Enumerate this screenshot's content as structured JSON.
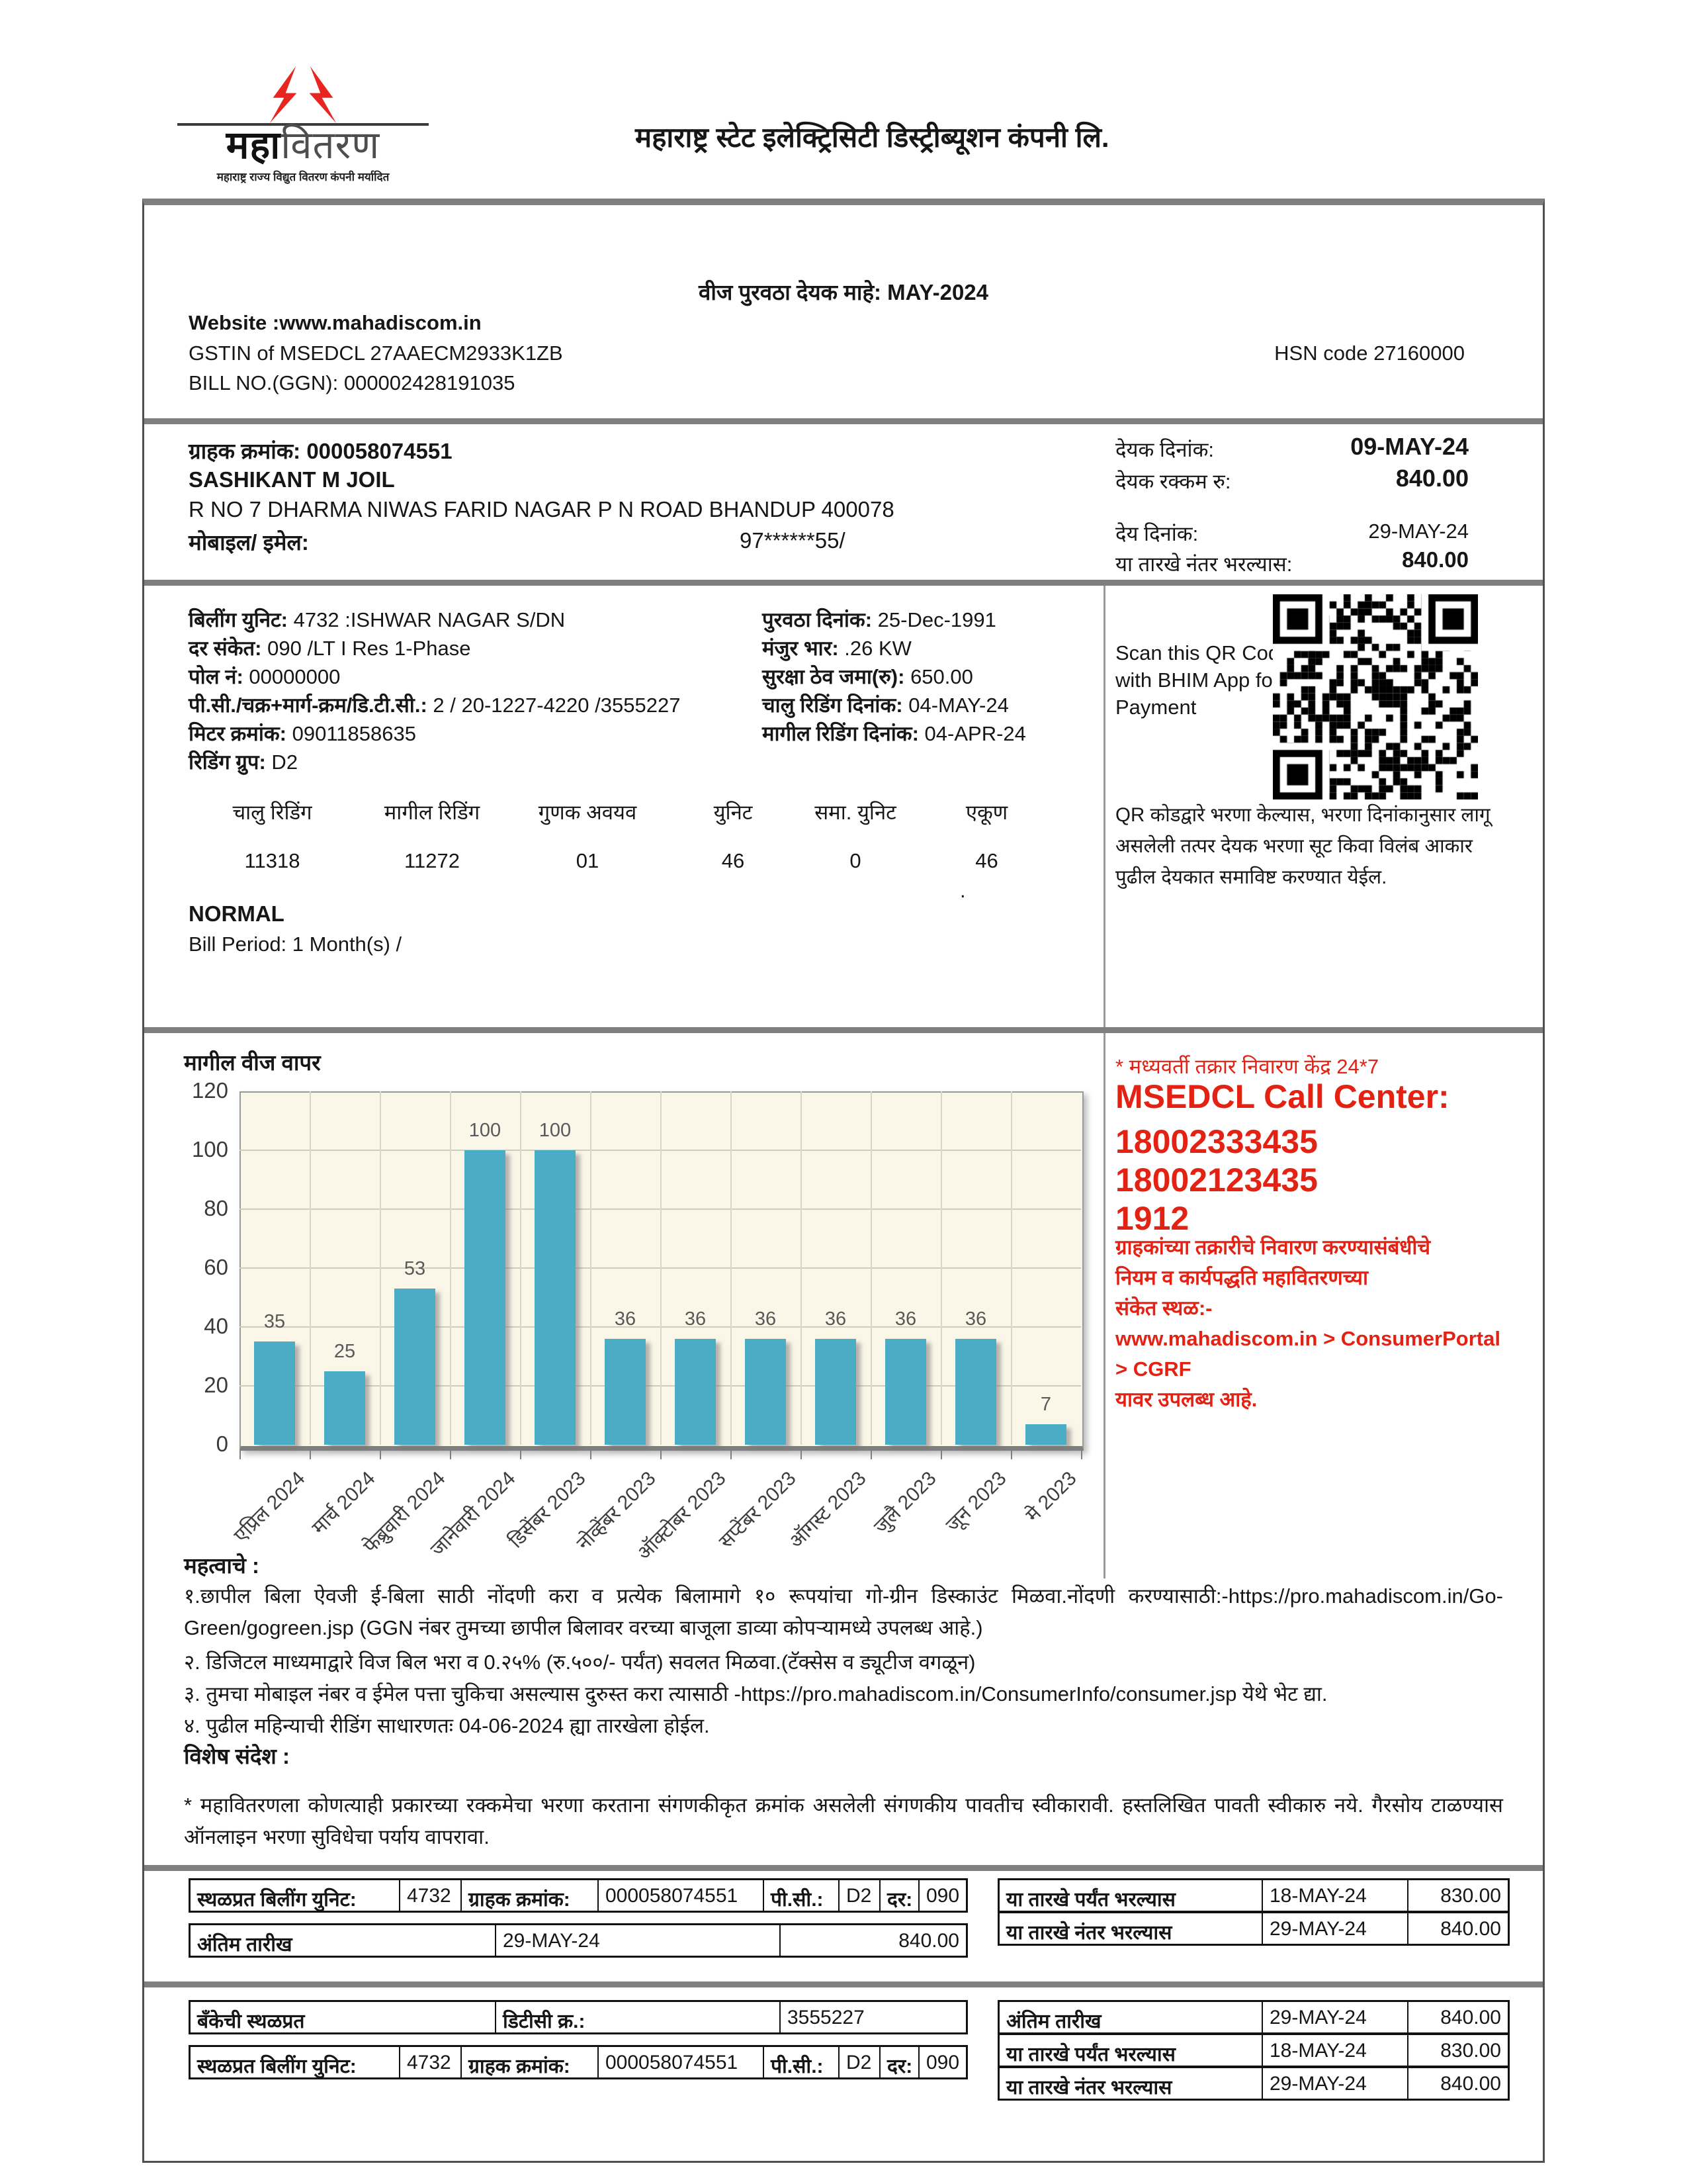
{
  "header": {
    "logo": {
      "word_bold": "महा",
      "word_light": "वितरण",
      "tagline": "महाराष्ट्र राज्य विद्युत वितरण कंपनी मर्यादित"
    },
    "company_name": "महाराष्ट्र स्टेट इलेक्ट्रिसिटी डिस्ट्रीब्यूशन कंपनी लि."
  },
  "bill_info": {
    "month_title": "वीज पुरवठा देयक माहे: MAY-2024",
    "website": "Website :www.mahadiscom.in",
    "gstin": "GSTIN of MSEDCL 27AAECM2933K1ZB",
    "bill_no": "BILL NO.(GGN): 000002428191035",
    "hsn": "HSN code 27160000"
  },
  "customer": {
    "consumer_no_label": "ग्राहक क्रमांक:",
    "consumer_no": "000058074551",
    "name": "SASHIKANT M JOIL",
    "address": "R NO 7 DHARMA NIWAS FARID NAGAR P N ROAD BHANDUP 400078",
    "mobile_label": "मोबाइल/ इमेल:",
    "mobile_value": "97******55/"
  },
  "amounts": {
    "rows": [
      {
        "label": "देयक दिनांक:",
        "value": "09-MAY-24"
      },
      {
        "label": "देयक रक्कम रु:",
        "value": "840.00"
      },
      {
        "label": "देय दिनांक:",
        "value": "29-MAY-24"
      },
      {
        "label": "या तारखे नंतर भरल्यास:",
        "value": "840.00"
      }
    ]
  },
  "billing_details": {
    "left": [
      {
        "label": "बिलींग युनिट:",
        "value": " 4732 :ISHWAR NAGAR S/DN"
      },
      {
        "label": "दर संकेत:",
        "value": " 090 /LT I Res 1-Phase"
      },
      {
        "label": "पोल नं:",
        "value": " 00000000"
      },
      {
        "label": "पी.सी./चक्र+मार्ग-क्रम/डि.टी.सी.:",
        "value": " 2 / 20-1227-4220 /3555227"
      },
      {
        "label": "मिटर क्रमांक:",
        "value": " 09011858635"
      },
      {
        "label": "रिडिंग ग्रुप:",
        "value": " D2"
      }
    ],
    "middle": [
      {
        "label": "पुरवठा दिनांक:",
        "value": " 25-Dec-1991"
      },
      {
        "label": "मंजुर भार:",
        "value": " .26 KW"
      },
      {
        "label": "सुरक्षा ठेव जमा(रु):",
        "value": " 650.00"
      },
      {
        "label": "चालु रिडिंग दिनांक:",
        "value": " 04-MAY-24"
      },
      {
        "label": "मागील रिडिंग दिनांक:",
        "value": " 04-APR-24"
      }
    ]
  },
  "qr": {
    "scan_text": "Scan this QR Code with BHIM App for UPI Payment",
    "note": "QR कोडद्वारे भरणा केल्यास, भरणा दिनांकानुसार लागू असलेली तत्पर देयक भरणा सूट किवा विलंब आकार पुढील देयकात समाविष्ट करण्यात येईल."
  },
  "readings": {
    "headers": [
      "चालु रिडिंग",
      "मागील रिडिंग",
      "गुणक अवयव",
      "युनिट",
      "समा. युनिट",
      "एकूण"
    ],
    "values": [
      "11318",
      "11272",
      "01",
      "46",
      "0",
      "46"
    ],
    "stray_dot": ".",
    "status": "NORMAL",
    "bill_period": "Bill Period: 1 Month(s) /"
  },
  "chart_data": {
    "type": "bar",
    "title": "मागील वीज वापर",
    "categories": [
      "एप्रिल 2024",
      "मार्च 2024",
      "फेब्रुवारी 2024",
      "जानेवारी 2024",
      "डिसेंबर 2023",
      "नोव्हेंबर 2023",
      "ऑक्टोबर 2023",
      "सप्टेंबर 2023",
      "ऑगस्ट 2023",
      "जुलै 2023",
      "जून 2023",
      "मे 2023"
    ],
    "values": [
      35,
      25,
      53,
      100,
      100,
      36,
      36,
      36,
      36,
      36,
      36,
      7
    ],
    "xlabel": "",
    "ylabel": "",
    "ylim": [
      0,
      120
    ],
    "ytick_step": 20,
    "grid": true,
    "legend": false,
    "bar_color": "#4bacc6",
    "plot_bg": "#fbf7e8"
  },
  "call_center": {
    "note": "* मध्यवर्ती तक्रार निवारण केंद्र 24*7",
    "title": "MSEDCL Call Center:",
    "numbers": [
      "18002333435",
      "18002123435",
      "1912"
    ],
    "lines": [
      "ग्राहकांच्या तक्रारीचे निवारण करण्यासंबंधीचे",
      "नियम व कार्यपद्धति महावितरणच्या",
      "संकेत स्थळ:-",
      "www.mahadiscom.in > ConsumerPortal",
      "> CGRF",
      "यावर उपलब्ध आहे."
    ]
  },
  "notes": {
    "title": "महत्वाचे :",
    "items": [
      "१.छापील बिला ऐवजी ई-बिला साठी नोंदणी करा व प्रत्येक बिलामागे १० रूपयांचा गो-ग्रीन डिस्काउंट मिळवा.नोंदणी करण्यासाठी:-https://pro.mahadiscom.in/Go-Green/gogreen.jsp (GGN नंबर तुमच्या छापील बिलावर वरच्या बाजूला डाव्या कोपऱ्यामध्ये उपलब्ध आहे.)",
      "२. डिजिटल माध्यमाद्वारे विज बिल भरा व 0.२५% (रु.५००/- पर्यंत) सवलत मिळवा.(टॅक्सेस व ड्यूटीज वगळून)",
      "३. तुमचा मोबाइल नंबर व ईमेल पत्ता चुकिचा असल्यास दुरुस्त करा त्यासाठी -https://pro.mahadiscom.in/ConsumerInfo/consumer.jsp येथे भेट द्या.",
      "४. पुढील महिन्याची रीडिंग साधारणतः 04-06-2024 ह्या तारखेला होईल."
    ],
    "special_title": "विशेष संदेश :",
    "special_message": "* महावितरणला कोणत्याही प्रकारच्या रक्कमेचा भरणा करताना संगणकीकृत क्रमांक असलेली संगणकीय पावतीच स्वीकारावी. हस्तलिखित पावती स्वीकारु नये. गैरसोय टाळण्यास ऑनलाइन भरणा सुविधेचा पर्याय वापरावा."
  },
  "slips": {
    "site": {
      "left_row1": [
        "स्थळप्रत बिलींग युनिट:",
        "4732",
        "ग्राहक क्रमांक:",
        "000058074551",
        "पी.सी.:",
        "D2",
        "दर:",
        "090"
      ],
      "left_row2": [
        "अंतिम तारीख",
        "29-MAY-24",
        "840.00"
      ],
      "right_rows": [
        [
          "या तारखे पर्यंत भरल्यास",
          "18-MAY-24",
          "830.00"
        ],
        [
          "या तारखे नंतर भरल्यास",
          "29-MAY-24",
          "840.00"
        ]
      ]
    },
    "bank": {
      "left_row1": [
        "बँकेची स्थळप्रत",
        "डिटीसी क्र.:",
        "3555227"
      ],
      "left_row2": [
        "स्थळप्रत बिलींग युनिट:",
        "4732",
        "ग्राहक क्रमांक:",
        "000058074551",
        "पी.सी.:",
        "D2",
        "दर:",
        "090"
      ],
      "right_rows": [
        [
          "अंतिम तारीख",
          "29-MAY-24",
          "840.00"
        ],
        [
          "या तारखे पर्यंत भरल्यास",
          "18-MAY-24",
          "830.00"
        ],
        [
          "या तारखे नंतर भरल्यास",
          "29-MAY-24",
          "840.00"
        ]
      ]
    }
  }
}
